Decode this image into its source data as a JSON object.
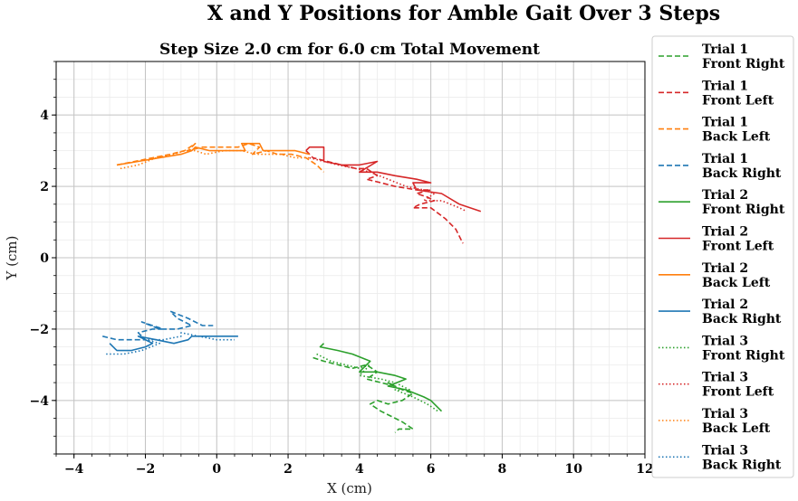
{
  "chart_data": {
    "type": "line",
    "suptitle": "X and Y Positions for Amble Gait Over 3 Steps",
    "title": "Step Size 2.0 cm for 6.0 cm Total Movement",
    "xlabel": "X (cm)",
    "ylabel": "Y (cm)",
    "xlim": [
      -4.5,
      12
    ],
    "ylim": [
      -5.5,
      5.5
    ],
    "xticks": [
      -4,
      -2,
      0,
      2,
      4,
      6,
      8,
      10,
      12
    ],
    "yticks": [
      -4,
      -2,
      0,
      2,
      4
    ],
    "x_tick_labels": [
      "−4",
      "−2",
      "0",
      "2",
      "4",
      "6",
      "8",
      "10",
      "12"
    ],
    "y_tick_labels": [
      "−4",
      "−2",
      "0",
      "2",
      "4"
    ],
    "grid": "major and minor",
    "legend_position": "outside right",
    "colors": {
      "green": "#2ca02c",
      "red": "#d62728",
      "orange": "#ff7f0e",
      "blue": "#1f77b4"
    },
    "series": [
      {
        "name": "Trial 1\nFront Right",
        "label_lines": [
          "Trial 1",
          "Front Right"
        ],
        "color": "#2ca02c",
        "style": "dashed",
        "x": [
          2.7,
          3.0,
          3.4,
          3.8,
          4.2,
          4.5,
          4.2,
          4.6,
          5.0,
          4.8,
          5.2,
          5.5,
          5.2,
          4.8,
          4.5,
          4.3,
          4.6,
          5.0,
          5.2,
          5.5,
          5.1,
          5.0
        ],
        "y": [
          -2.8,
          -2.9,
          -3.0,
          -3.1,
          -3.0,
          -3.2,
          -3.4,
          -3.5,
          -3.6,
          -3.5,
          -3.7,
          -3.8,
          -4.0,
          -4.1,
          -4.0,
          -4.1,
          -4.3,
          -4.5,
          -4.6,
          -4.8,
          -4.8,
          -4.9
        ]
      },
      {
        "name": "Trial 1\nFront Left",
        "label_lines": [
          "Trial 1",
          "Front Left"
        ],
        "color": "#d62728",
        "style": "dashed",
        "x": [
          2.5,
          2.7,
          3.1,
          3.5,
          3.9,
          4.2,
          4.5,
          4.2,
          4.6,
          5.0,
          5.6,
          6.0,
          5.6,
          5.9,
          6.1,
          5.7,
          5.5,
          6.0,
          6.4,
          6.7,
          6.9
        ],
        "y": [
          3.0,
          2.8,
          2.7,
          2.6,
          2.5,
          2.5,
          2.3,
          2.2,
          2.1,
          2.0,
          1.9,
          1.9,
          1.8,
          1.7,
          1.6,
          1.5,
          1.4,
          1.4,
          1.1,
          0.8,
          0.4
        ]
      },
      {
        "name": "Trial 1\nBack Left",
        "label_lines": [
          "Trial 1",
          "Back Left"
        ],
        "color": "#ff7f0e",
        "style": "dashed",
        "x": [
          -2.8,
          -2.3,
          -1.8,
          -1.3,
          -0.9,
          -0.6,
          -0.8,
          -0.4,
          0.1,
          0.6,
          0.9,
          1.2,
          1.0,
          1.4,
          1.7,
          2.1,
          2.5,
          2.8,
          3.0
        ],
        "y": [
          2.6,
          2.7,
          2.8,
          2.9,
          3.0,
          3.2,
          3.0,
          3.1,
          3.1,
          3.1,
          3.2,
          3.1,
          2.9,
          3.0,
          2.9,
          2.9,
          2.8,
          2.6,
          2.4
        ]
      },
      {
        "name": "Trial 1\nBack Right",
        "label_lines": [
          "Trial 1",
          "Back Right"
        ],
        "color": "#1f77b4",
        "style": "dashed",
        "x": [
          -3.2,
          -2.8,
          -2.4,
          -2.0,
          -2.2,
          -1.8,
          -1.5,
          -2.1,
          -1.6,
          -1.1,
          -0.7,
          -1.1,
          -1.3,
          -0.8,
          -0.4,
          -0.1
        ],
        "y": [
          -2.2,
          -2.3,
          -2.3,
          -2.3,
          -2.1,
          -2.0,
          -2.0,
          -1.8,
          -2.0,
          -2.0,
          -1.9,
          -1.7,
          -1.5,
          -1.7,
          -1.9,
          -1.9
        ]
      },
      {
        "name": "Trial 2\nFront Right",
        "label_lines": [
          "Trial 2",
          "Front Right"
        ],
        "color": "#2ca02c",
        "style": "solid",
        "x": [
          3.0,
          2.9,
          3.4,
          3.8,
          4.3,
          4.0,
          4.5,
          5.0,
          5.3,
          4.8,
          5.3,
          5.8,
          6.0,
          6.3
        ],
        "y": [
          -2.4,
          -2.5,
          -2.6,
          -2.7,
          -2.9,
          -3.2,
          -3.2,
          -3.3,
          -3.4,
          -3.6,
          -3.7,
          -3.9,
          -4.0,
          -4.3
        ]
      },
      {
        "name": "Trial 2\nFront Left",
        "label_lines": [
          "Trial 2",
          "Front Left"
        ],
        "color": "#d62728",
        "style": "solid",
        "x": [
          2.5,
          2.6,
          3.0,
          3.0,
          3.5,
          4.0,
          4.5,
          4.0,
          4.5,
          5.0,
          5.6,
          6.0,
          5.5,
          5.6,
          6.3,
          6.8,
          7.4
        ],
        "y": [
          3.0,
          3.1,
          3.1,
          2.7,
          2.6,
          2.6,
          2.7,
          2.4,
          2.4,
          2.3,
          2.2,
          2.1,
          2.1,
          1.9,
          1.8,
          1.5,
          1.3
        ]
      },
      {
        "name": "Trial 2\nBack Left",
        "label_lines": [
          "Trial 2",
          "Back Left"
        ],
        "color": "#ff7f0e",
        "style": "solid",
        "x": [
          -2.8,
          -2.2,
          -1.6,
          -1.0,
          -0.7,
          -0.6,
          -0.2,
          0.4,
          0.8,
          0.7,
          1.2,
          1.3,
          1.6,
          2.2,
          2.6
        ],
        "y": [
          2.6,
          2.7,
          2.8,
          2.9,
          3.0,
          3.1,
          3.0,
          3.0,
          3.0,
          3.2,
          3.2,
          3.0,
          3.0,
          3.0,
          2.9
        ]
      },
      {
        "name": "Trial 2\nBack Right",
        "label_lines": [
          "Trial 2",
          "Back Right"
        ],
        "color": "#1f77b4",
        "style": "solid",
        "x": [
          -3.0,
          -2.8,
          -2.4,
          -2.0,
          -1.8,
          -2.2,
          -1.7,
          -1.2,
          -0.8,
          -0.7,
          -0.4,
          0.0,
          0.6
        ],
        "y": [
          -2.4,
          -2.6,
          -2.6,
          -2.5,
          -2.4,
          -2.2,
          -2.3,
          -2.4,
          -2.3,
          -2.2,
          -2.2,
          -2.2,
          -2.2
        ]
      },
      {
        "name": "Trial 3\nFront Right",
        "label_lines": [
          "Trial 3",
          "Front Right"
        ],
        "color": "#2ca02c",
        "style": "dotted",
        "x": [
          2.8,
          3.2,
          3.6,
          4.0,
          4.3,
          4.0,
          4.6,
          5.0,
          5.4,
          5.0,
          5.5,
          5.9,
          6.2
        ],
        "y": [
          -2.7,
          -2.9,
          -3.0,
          -3.1,
          -3.0,
          -3.3,
          -3.4,
          -3.5,
          -3.7,
          -3.7,
          -3.9,
          -4.1,
          -4.3
        ]
      },
      {
        "name": "Trial 3\nFront Left",
        "label_lines": [
          "Trial 3",
          "Front Left"
        ],
        "color": "#d62728",
        "style": "dotted",
        "x": [
          2.6,
          3.0,
          3.4,
          3.9,
          4.3,
          4.8,
          5.3,
          5.8,
          6.1,
          5.8,
          6.3,
          6.8,
          7.0
        ],
        "y": [
          2.8,
          2.7,
          2.6,
          2.5,
          2.4,
          2.2,
          2.0,
          1.9,
          1.8,
          1.6,
          1.6,
          1.4,
          1.3
        ]
      },
      {
        "name": "Trial 3\nBack Left",
        "label_lines": [
          "Trial 3",
          "Back Left"
        ],
        "color": "#ff7f0e",
        "style": "dotted",
        "x": [
          -2.7,
          -2.2,
          -1.7,
          -1.2,
          -0.9,
          -0.6,
          -0.3,
          0.2,
          0.7,
          1.1,
          1.4,
          1.8,
          2.2,
          2.6
        ],
        "y": [
          2.5,
          2.6,
          2.8,
          2.9,
          3.0,
          3.0,
          2.9,
          3.0,
          3.0,
          2.9,
          2.9,
          2.9,
          2.8,
          2.8
        ]
      },
      {
        "name": "Trial 3\nBack Right",
        "label_lines": [
          "Trial 3",
          "Back Right"
        ],
        "color": "#1f77b4",
        "style": "dotted",
        "x": [
          -3.1,
          -2.6,
          -2.1,
          -1.6,
          -2.0,
          -1.5,
          -1.0,
          -1.0,
          -0.5,
          0.0,
          0.5
        ],
        "y": [
          -2.7,
          -2.7,
          -2.6,
          -2.4,
          -2.3,
          -2.3,
          -2.2,
          -2.1,
          -2.2,
          -2.3,
          -2.3
        ]
      }
    ]
  }
}
